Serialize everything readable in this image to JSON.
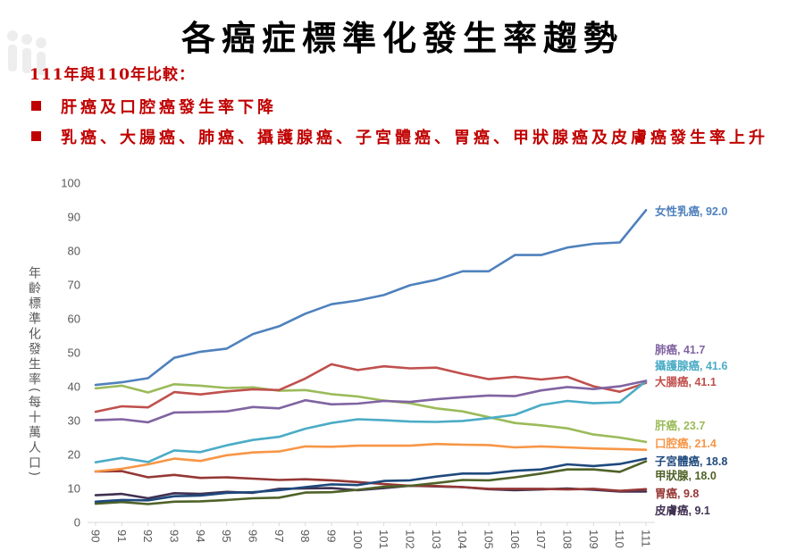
{
  "slide": {
    "title": "各癌症標準化發生率趨勢",
    "subtitle": "111年與110年比較：",
    "bullets": [
      "肝癌及口腔癌發生率下降",
      "乳癌、大腸癌、肺癌、攝護腺癌、子宮體癌、胃癌、甲狀腺癌及皮膚癌發生率上升"
    ],
    "accent_color": "#C00000"
  },
  "chart_data": {
    "type": "line",
    "categories": [
      "90",
      "91",
      "92",
      "93",
      "94",
      "95",
      "96",
      "97",
      "98",
      "99",
      "100",
      "101",
      "102",
      "103",
      "104",
      "105",
      "106",
      "107",
      "108",
      "109",
      "110",
      "111"
    ],
    "xlabel": "",
    "ylabel": "年齡標準化發生率(每十萬人口)",
    "ylim": [
      0,
      100
    ],
    "yticks": [
      0,
      10,
      20,
      30,
      40,
      50,
      60,
      70,
      80,
      90,
      100
    ],
    "grid": false,
    "legend": "right",
    "series": [
      {
        "name": "女性乳癌",
        "end_text": ", 92.0",
        "color": "#4F81BD",
        "values": [
          40.5,
          41.3,
          42.5,
          48.5,
          50.3,
          51.2,
          55.5,
          57.8,
          61.5,
          64.3,
          65.4,
          67.0,
          69.9,
          71.5,
          74.0,
          74.0,
          78.8,
          78.8,
          81.0,
          82.1,
          82.5,
          92.0
        ]
      },
      {
        "name": "肺癌",
        "end_text": ", 41.7",
        "color": "#8064A2",
        "values": [
          30.1,
          30.4,
          29.5,
          32.4,
          32.5,
          32.7,
          34.0,
          33.6,
          36.0,
          34.8,
          35.0,
          35.8,
          35.5,
          36.3,
          36.9,
          37.4,
          37.2,
          38.9,
          39.9,
          39.3,
          40.1,
          41.7
        ]
      },
      {
        "name": "攝護腺癌",
        "end_text": ", 41.6",
        "color": "#4BACC6",
        "values": [
          17.7,
          19.0,
          17.8,
          21.2,
          20.7,
          22.7,
          24.3,
          25.2,
          27.6,
          29.3,
          30.4,
          30.1,
          29.7,
          29.6,
          29.9,
          30.7,
          31.7,
          34.6,
          35.8,
          35.1,
          35.4,
          41.6
        ]
      },
      {
        "name": "大腸癌",
        "end_text": ", 41.1",
        "color": "#C0504D",
        "values": [
          32.6,
          34.2,
          33.9,
          38.4,
          37.7,
          38.6,
          39.2,
          39.0,
          42.4,
          46.6,
          44.9,
          46.0,
          45.4,
          45.6,
          43.8,
          42.2,
          42.9,
          42.1,
          42.9,
          40.1,
          38.5,
          41.1
        ]
      },
      {
        "name": "肝癌",
        "end_text": ", 23.7",
        "color": "#9BBB59",
        "values": [
          39.5,
          40.3,
          38.3,
          40.7,
          40.3,
          39.6,
          39.8,
          38.8,
          39.0,
          37.8,
          37.1,
          35.9,
          35.1,
          33.6,
          32.7,
          31.0,
          29.3,
          28.6,
          27.7,
          25.9,
          25.0,
          23.7
        ]
      },
      {
        "name": "口腔癌",
        "end_text": ", 21.4",
        "color": "#F79646",
        "values": [
          15.0,
          15.8,
          17.1,
          18.8,
          18.1,
          19.8,
          20.6,
          20.9,
          22.4,
          22.3,
          22.6,
          22.6,
          22.6,
          23.1,
          22.9,
          22.8,
          22.1,
          22.4,
          22.1,
          21.8,
          21.6,
          21.4
        ]
      },
      {
        "name": "子宮體癌",
        "end_text": ", 18.8",
        "color": "#1F497D",
        "values": [
          6.1,
          6.6,
          6.5,
          7.7,
          7.9,
          8.7,
          8.9,
          9.5,
          10.4,
          11.2,
          11.0,
          12.2,
          12.4,
          13.5,
          14.4,
          14.4,
          15.2,
          15.6,
          17.1,
          16.6,
          17.2,
          18.8
        ]
      },
      {
        "name": "甲狀腺",
        "end_text": ", 18.0",
        "color": "#4F6228",
        "values": [
          5.5,
          6.0,
          5.4,
          6.1,
          6.2,
          6.6,
          7.1,
          7.3,
          8.8,
          8.9,
          9.6,
          10.5,
          10.8,
          11.6,
          12.5,
          12.4,
          13.3,
          14.4,
          15.6,
          15.6,
          14.9,
          18.0
        ]
      },
      {
        "name": "胃癌",
        "end_text": ", 9.8",
        "color": "#953735",
        "values": [
          15.0,
          15.1,
          13.3,
          14.0,
          13.1,
          13.3,
          12.9,
          12.5,
          12.7,
          12.4,
          11.9,
          11.3,
          10.8,
          10.7,
          10.4,
          9.9,
          9.9,
          9.9,
          9.7,
          9.9,
          9.3,
          9.8
        ]
      },
      {
        "name": "皮膚癌",
        "end_text": ", 9.1",
        "color": "#403152",
        "values": [
          8.0,
          8.4,
          7.1,
          8.6,
          8.4,
          9.0,
          8.7,
          9.9,
          10.0,
          10.1,
          9.5,
          10.1,
          10.8,
          10.6,
          10.4,
          9.8,
          9.5,
          9.7,
          10.0,
          9.6,
          9.1,
          9.1
        ]
      }
    ]
  }
}
